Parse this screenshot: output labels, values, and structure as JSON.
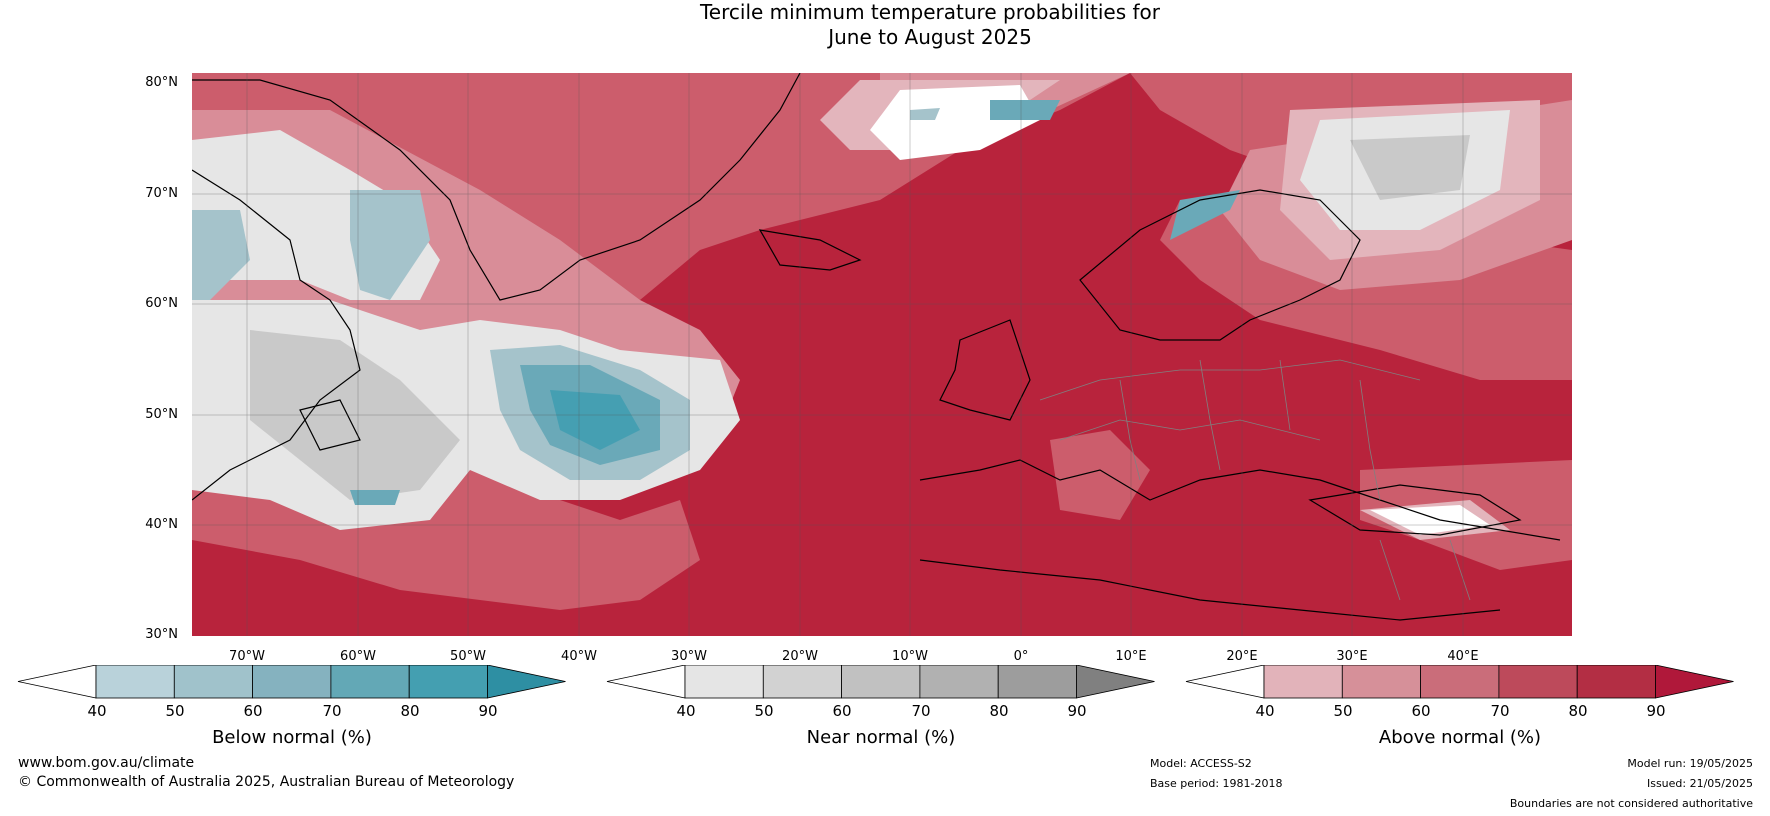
{
  "title": {
    "line1": "Tercile minimum temperature probabilities for",
    "line2": "June to August 2025"
  },
  "map": {
    "lat_labels": [
      "80°N",
      "70°N",
      "60°N",
      "50°N",
      "40°N",
      "30°N"
    ],
    "lon_labels": [
      "70°W",
      "60°W",
      "50°W",
      "40°W",
      "30°W",
      "20°W",
      "10°W",
      "0°",
      "10°E",
      "20°E",
      "30°E",
      "40°E"
    ],
    "colors": {
      "ocean_main": "#b8233c",
      "above_70": "#cc5d6c",
      "above_60": "#d98d98",
      "above_50": "#e3b5bc",
      "near_light": "#e6e6e6",
      "near_mid": "#c9c9c9",
      "below_60": "#a5c3cb",
      "below_70": "#6aa9b8",
      "below_80": "#459fb2",
      "coast": "#000000",
      "border": "#808080"
    }
  },
  "colorbars": [
    {
      "title": "Below normal (%)",
      "ticks": [
        "40",
        "50",
        "60",
        "70",
        "80",
        "90"
      ],
      "colors": [
        "#ffffff",
        "#b9d2da",
        "#a0c2cb",
        "#85b2bf",
        "#63a8b6",
        "#449fb1",
        "#2e8fa3"
      ]
    },
    {
      "title": "Near normal (%)",
      "ticks": [
        "40",
        "50",
        "60",
        "70",
        "80",
        "90"
      ],
      "colors": [
        "#ffffff",
        "#e5e5e5",
        "#d2d2d2",
        "#c1c1c1",
        "#b1b1b1",
        "#9d9d9d",
        "#808080"
      ]
    },
    {
      "title": "Above normal (%)",
      "ticks": [
        "40",
        "50",
        "60",
        "70",
        "80",
        "90"
      ],
      "colors": [
        "#ffffff",
        "#e2b3ba",
        "#d69099",
        "#ca6d7a",
        "#bd4a5b",
        "#b32e44",
        "#b0183a"
      ]
    }
  ],
  "footer": {
    "website": "www.bom.gov.au/climate",
    "copyright": "© Commonwealth of Australia 2025, Australian Bureau of Meteorology",
    "model": "Model: ACCESS-S2",
    "base_period": "Base period: 1981-2018",
    "model_run": "Model run: 19/05/2025",
    "issued": "Issued: 21/05/2025",
    "disclaimer": "Boundaries are not considered authoritative"
  }
}
